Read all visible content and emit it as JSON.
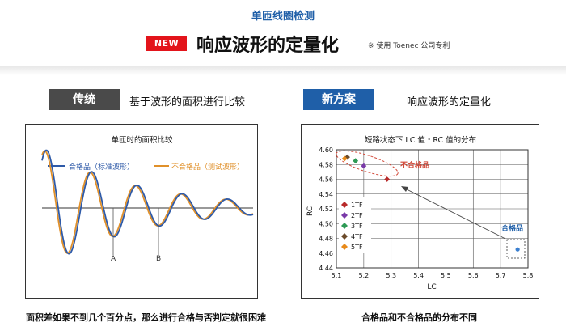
{
  "header": {
    "top_title": "单匝线圈检测",
    "new_badge": "NEW",
    "heading": "响应波形的定量化",
    "patent_note": "※ 使用 Toenec 公司专利"
  },
  "left": {
    "tag": "传统",
    "description": "基于波形的面积进行比较",
    "chart_title": "单匝时的面积比较",
    "legend_good": "合格品（标准波形）",
    "legend_bad": "不合格品（测试波形）",
    "marker_a": "A",
    "marker_b": "B",
    "caption": "面积差如果不到几个百分点，那么进行合格与否判定就很困难"
  },
  "right": {
    "tag": "新方案",
    "description": "响应波形的定量化",
    "caption": "合格品和不合格品的分布不同"
  },
  "colors": {
    "brand_blue": "#1f5fa8",
    "badge_red": "#e3141b",
    "good_wave": "#2e5aa8",
    "bad_wave": "#e0902a"
  },
  "chart_data": [
    {
      "type": "line",
      "title": "单匝时的面积比较",
      "series": [
        {
          "name": "合格品（标准波形）",
          "color": "#2e5aa8"
        },
        {
          "name": "不合格品（测试波形）",
          "color": "#e0902a"
        }
      ],
      "annotations": [
        "A",
        "B"
      ]
    },
    {
      "type": "scatter",
      "title": "短路状态下 LC 值・RC 值的分布",
      "xlabel": "LC",
      "ylabel": "RC",
      "xlim": [
        5.1,
        5.8
      ],
      "ylim": [
        4.44,
        4.6
      ],
      "xticks": [
        "5.1",
        "5.2",
        "5.3",
        "5.4",
        "5.5",
        "5.6",
        "5.7",
        "5.8"
      ],
      "yticks": [
        "4.44",
        "4.46",
        "4.48",
        "4.50",
        "4.52",
        "4.54",
        "4.56",
        "4.58",
        "4.60"
      ],
      "grid": true,
      "legend_position": "bottom-left",
      "series": [
        {
          "name": "1TF",
          "color": "#b82a2a",
          "x": [
            5.285
          ],
          "y": [
            4.56
          ]
        },
        {
          "name": "2TF",
          "color": "#7a3aa8",
          "x": [
            5.2
          ],
          "y": [
            4.578
          ]
        },
        {
          "name": "3TF",
          "color": "#2e9a55",
          "x": [
            5.17
          ],
          "y": [
            4.585
          ]
        },
        {
          "name": "4TF",
          "color": "#6b4a2a",
          "x": [
            5.14
          ],
          "y": [
            4.59
          ]
        },
        {
          "name": "5TF",
          "color": "#e88a1a",
          "x": [
            5.13
          ],
          "y": [
            4.588
          ]
        },
        {
          "name": "合格品",
          "color": "#3a7fd0",
          "x": [
            5.762
          ],
          "y": [
            4.465
          ]
        }
      ],
      "cluster_label_bad": "不合格品",
      "cluster_label_good": "合格品"
    }
  ]
}
